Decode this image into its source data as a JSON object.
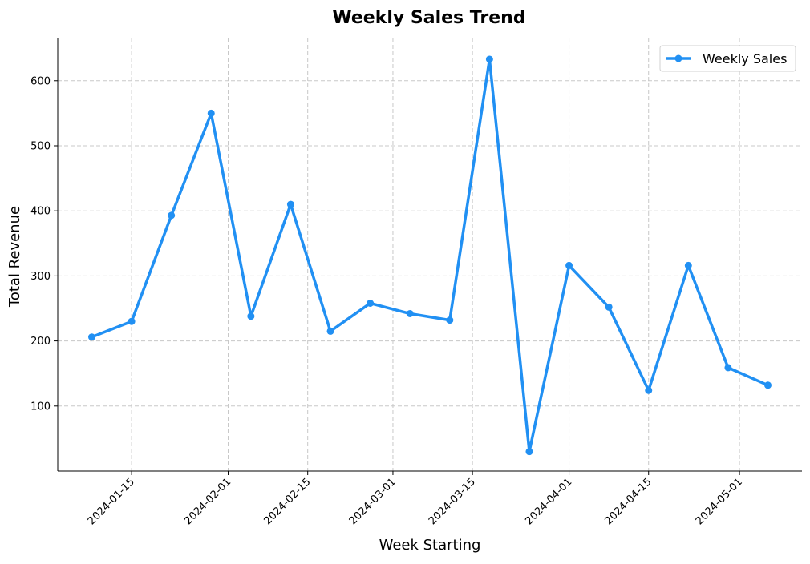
{
  "chart_data": {
    "type": "line",
    "title": "Weekly Sales Trend",
    "xlabel": "Week Starting",
    "ylabel": "Total Revenue",
    "x_tick_labels": [
      "2024-01-15",
      "2024-02-01",
      "2024-02-15",
      "2024-03-01",
      "2024-03-15",
      "2024-04-01",
      "2024-04-15",
      "2024-05-01"
    ],
    "y_ticks": [
      100,
      200,
      300,
      400,
      500,
      600
    ],
    "xlim": [
      "2024-01-02",
      "2024-05-12"
    ],
    "ylim": [
      0,
      665
    ],
    "grid": true,
    "legend_position": "top-right",
    "series": [
      {
        "name": "Weekly Sales",
        "color": "#2190f3",
        "marker": "circle",
        "x": [
          "2024-01-08",
          "2024-01-15",
          "2024-01-22",
          "2024-01-29",
          "2024-02-05",
          "2024-02-12",
          "2024-02-19",
          "2024-02-26",
          "2024-03-04",
          "2024-03-11",
          "2024-03-18",
          "2024-03-25",
          "2024-04-01",
          "2024-04-08",
          "2024-04-15",
          "2024-04-22",
          "2024-04-29",
          "2024-05-06"
        ],
        "values": [
          206,
          230,
          393,
          550,
          238,
          410,
          215,
          258,
          242,
          232,
          633,
          30,
          316,
          252,
          124,
          316,
          159,
          132
        ]
      }
    ]
  }
}
